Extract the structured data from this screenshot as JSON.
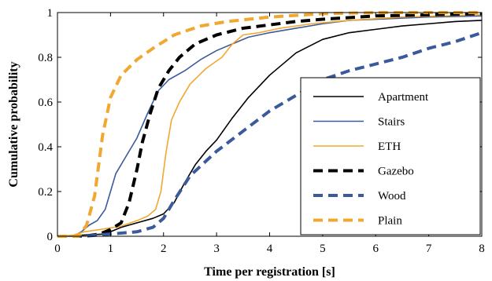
{
  "chart_data": {
    "type": "line",
    "title": "",
    "xlabel": "Time per registration [s]",
    "ylabel": "Cumulative probability",
    "xlim": [
      0,
      8
    ],
    "ylim": [
      0,
      1
    ],
    "xticks": [
      "0",
      "1",
      "2",
      "3",
      "4",
      "5",
      "6",
      "7",
      "8"
    ],
    "yticks": [
      "0",
      "0.2",
      "0.4",
      "0.6",
      "0.8",
      "1"
    ],
    "grid": false,
    "legend_position": "bottom-right",
    "series": [
      {
        "name": "Apartment",
        "color": "#000000",
        "dash": "solid",
        "points": [
          [
            0,
            0
          ],
          [
            0.9,
            0.01
          ],
          [
            1.2,
            0.04
          ],
          [
            1.5,
            0.06
          ],
          [
            1.8,
            0.08
          ],
          [
            2.0,
            0.1
          ],
          [
            2.2,
            0.15
          ],
          [
            2.4,
            0.24
          ],
          [
            2.6,
            0.32
          ],
          [
            2.8,
            0.38
          ],
          [
            3.0,
            0.43
          ],
          [
            3.3,
            0.53
          ],
          [
            3.6,
            0.62
          ],
          [
            4.0,
            0.72
          ],
          [
            4.5,
            0.82
          ],
          [
            5.0,
            0.88
          ],
          [
            5.5,
            0.91
          ],
          [
            6.0,
            0.925
          ],
          [
            6.5,
            0.94
          ],
          [
            7.0,
            0.95
          ],
          [
            7.5,
            0.96
          ],
          [
            8.0,
            0.965
          ]
        ]
      },
      {
        "name": "Stairs",
        "color": "#3a5a9b",
        "dash": "solid",
        "points": [
          [
            0,
            0
          ],
          [
            0.3,
            0.0
          ],
          [
            0.45,
            0.02
          ],
          [
            0.6,
            0.05
          ],
          [
            0.75,
            0.07
          ],
          [
            0.9,
            0.12
          ],
          [
            1.0,
            0.2
          ],
          [
            1.1,
            0.28
          ],
          [
            1.3,
            0.36
          ],
          [
            1.5,
            0.44
          ],
          [
            1.7,
            0.55
          ],
          [
            1.9,
            0.65
          ],
          [
            2.1,
            0.7
          ],
          [
            2.4,
            0.74
          ],
          [
            2.7,
            0.79
          ],
          [
            3.0,
            0.83
          ],
          [
            3.3,
            0.86
          ],
          [
            3.6,
            0.89
          ],
          [
            4.0,
            0.91
          ],
          [
            4.5,
            0.93
          ],
          [
            5.0,
            0.95
          ],
          [
            5.5,
            0.965
          ],
          [
            6.0,
            0.97
          ],
          [
            7.0,
            0.98
          ],
          [
            8.0,
            0.985
          ]
        ]
      },
      {
        "name": "ETH",
        "color": "#f0a830",
        "dash": "solid",
        "points": [
          [
            0,
            0
          ],
          [
            0.3,
            0.005
          ],
          [
            0.5,
            0.02
          ],
          [
            0.8,
            0.03
          ],
          [
            1.2,
            0.045
          ],
          [
            1.5,
            0.07
          ],
          [
            1.7,
            0.09
          ],
          [
            1.85,
            0.12
          ],
          [
            1.95,
            0.2
          ],
          [
            2.05,
            0.38
          ],
          [
            2.15,
            0.52
          ],
          [
            2.3,
            0.6
          ],
          [
            2.5,
            0.68
          ],
          [
            2.8,
            0.75
          ],
          [
            3.1,
            0.8
          ],
          [
            3.3,
            0.86
          ],
          [
            3.5,
            0.9
          ],
          [
            3.8,
            0.91
          ],
          [
            4.2,
            0.93
          ],
          [
            4.8,
            0.95
          ],
          [
            5.5,
            0.965
          ],
          [
            6.5,
            0.98
          ],
          [
            8.0,
            0.99
          ]
        ]
      },
      {
        "name": "Gazebo",
        "color": "#000000",
        "dash": "dashed",
        "points": [
          [
            0,
            0
          ],
          [
            0.5,
            0.0
          ],
          [
            0.8,
            0.01
          ],
          [
            1.0,
            0.03
          ],
          [
            1.2,
            0.06
          ],
          [
            1.35,
            0.15
          ],
          [
            1.5,
            0.3
          ],
          [
            1.6,
            0.42
          ],
          [
            1.75,
            0.55
          ],
          [
            1.9,
            0.66
          ],
          [
            2.1,
            0.74
          ],
          [
            2.3,
            0.8
          ],
          [
            2.6,
            0.86
          ],
          [
            3.0,
            0.9
          ],
          [
            3.5,
            0.93
          ],
          [
            4.0,
            0.945
          ],
          [
            4.5,
            0.96
          ],
          [
            5.0,
            0.97
          ],
          [
            6.0,
            0.985
          ],
          [
            7.0,
            0.99
          ],
          [
            8.0,
            0.995
          ]
        ]
      },
      {
        "name": "Wood",
        "color": "#3a5a9b",
        "dash": "dashed",
        "points": [
          [
            0,
            0
          ],
          [
            0.5,
            0.0
          ],
          [
            1.0,
            0.01
          ],
          [
            1.5,
            0.02
          ],
          [
            1.8,
            0.04
          ],
          [
            2.0,
            0.08
          ],
          [
            2.2,
            0.16
          ],
          [
            2.5,
            0.27
          ],
          [
            3.0,
            0.38
          ],
          [
            3.5,
            0.47
          ],
          [
            4.0,
            0.56
          ],
          [
            4.5,
            0.63
          ],
          [
            5.0,
            0.7
          ],
          [
            5.5,
            0.74
          ],
          [
            6.0,
            0.77
          ],
          [
            6.5,
            0.8
          ],
          [
            7.0,
            0.84
          ],
          [
            7.5,
            0.87
          ],
          [
            8.0,
            0.91
          ]
        ]
      },
      {
        "name": "Plain",
        "color": "#f0a830",
        "dash": "dashed",
        "points": [
          [
            0,
            0
          ],
          [
            0.4,
            0.0
          ],
          [
            0.55,
            0.05
          ],
          [
            0.7,
            0.18
          ],
          [
            0.85,
            0.45
          ],
          [
            1.0,
            0.62
          ],
          [
            1.2,
            0.72
          ],
          [
            1.5,
            0.79
          ],
          [
            1.8,
            0.84
          ],
          [
            2.2,
            0.9
          ],
          [
            2.7,
            0.94
          ],
          [
            3.2,
            0.96
          ],
          [
            4.0,
            0.98
          ],
          [
            5.0,
            0.995
          ],
          [
            6.0,
            1.0
          ],
          [
            8.0,
            1.0
          ]
        ]
      }
    ]
  }
}
